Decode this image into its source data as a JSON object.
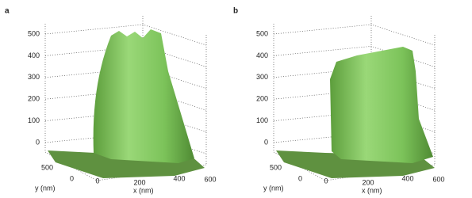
{
  "panels": [
    {
      "label": "a",
      "z_ticks": [
        500,
        400,
        300,
        200,
        100,
        0
      ],
      "y_label": "y (nm)",
      "y_ticks": [
        500,
        0
      ],
      "x_label": "x (nm)",
      "x_ticks": [
        0,
        200,
        400,
        600
      ]
    },
    {
      "label": "b",
      "z_ticks": [
        500,
        400,
        300,
        200,
        100,
        0
      ],
      "y_label": "y (nm)",
      "y_ticks": [
        500,
        0
      ],
      "x_label": "x (nm)",
      "x_ticks": [
        0,
        200,
        400,
        600
      ]
    }
  ]
}
